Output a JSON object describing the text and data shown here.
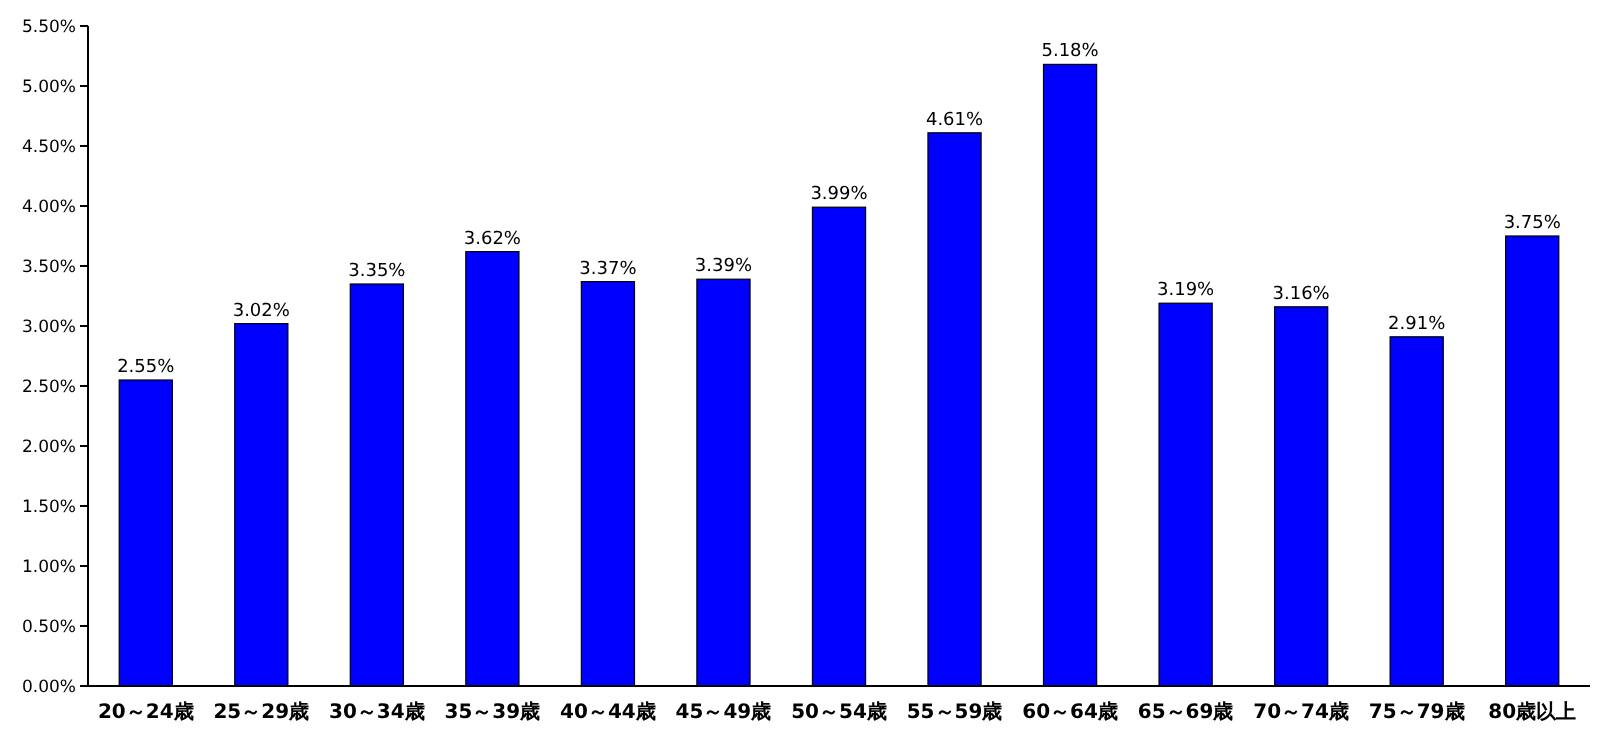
{
  "chart_data": {
    "type": "bar",
    "categories": [
      "20～24歳",
      "25～29歳",
      "30～34歳",
      "35～39歳",
      "40～44歳",
      "45～49歳",
      "50～54歳",
      "55～59歳",
      "60～64歳",
      "65～69歳",
      "70～74歳",
      "75～79歳",
      "80歳以上"
    ],
    "values": [
      2.55,
      3.02,
      3.35,
      3.62,
      3.37,
      3.39,
      3.99,
      4.61,
      5.18,
      3.19,
      3.16,
      2.91,
      3.75
    ],
    "value_labels": [
      "2.55%",
      "3.02%",
      "3.35%",
      "3.62%",
      "3.37%",
      "3.39%",
      "3.99%",
      "4.61%",
      "5.18%",
      "3.19%",
      "3.16%",
      "2.91%",
      "3.75%"
    ],
    "color": "#0000ff",
    "ylim": [
      0,
      5.5
    ],
    "yticks": [
      {
        "value": 0,
        "label": "0.00%"
      },
      {
        "value": 0.5,
        "label": "0.50%"
      },
      {
        "value": 1,
        "label": "1.00%"
      },
      {
        "value": 1.5,
        "label": "1.50%"
      },
      {
        "value": 2,
        "label": "2.00%"
      },
      {
        "value": 2.5,
        "label": "2.50%"
      },
      {
        "value": 3,
        "label": "3.00%"
      },
      {
        "value": 3.5,
        "label": "3.50%"
      },
      {
        "value": 4,
        "label": "4.00%"
      },
      {
        "value": 4.5,
        "label": "4.50%"
      },
      {
        "value": 5,
        "label": "5.00%"
      },
      {
        "value": 5.5,
        "label": "5.50%"
      }
    ]
  }
}
